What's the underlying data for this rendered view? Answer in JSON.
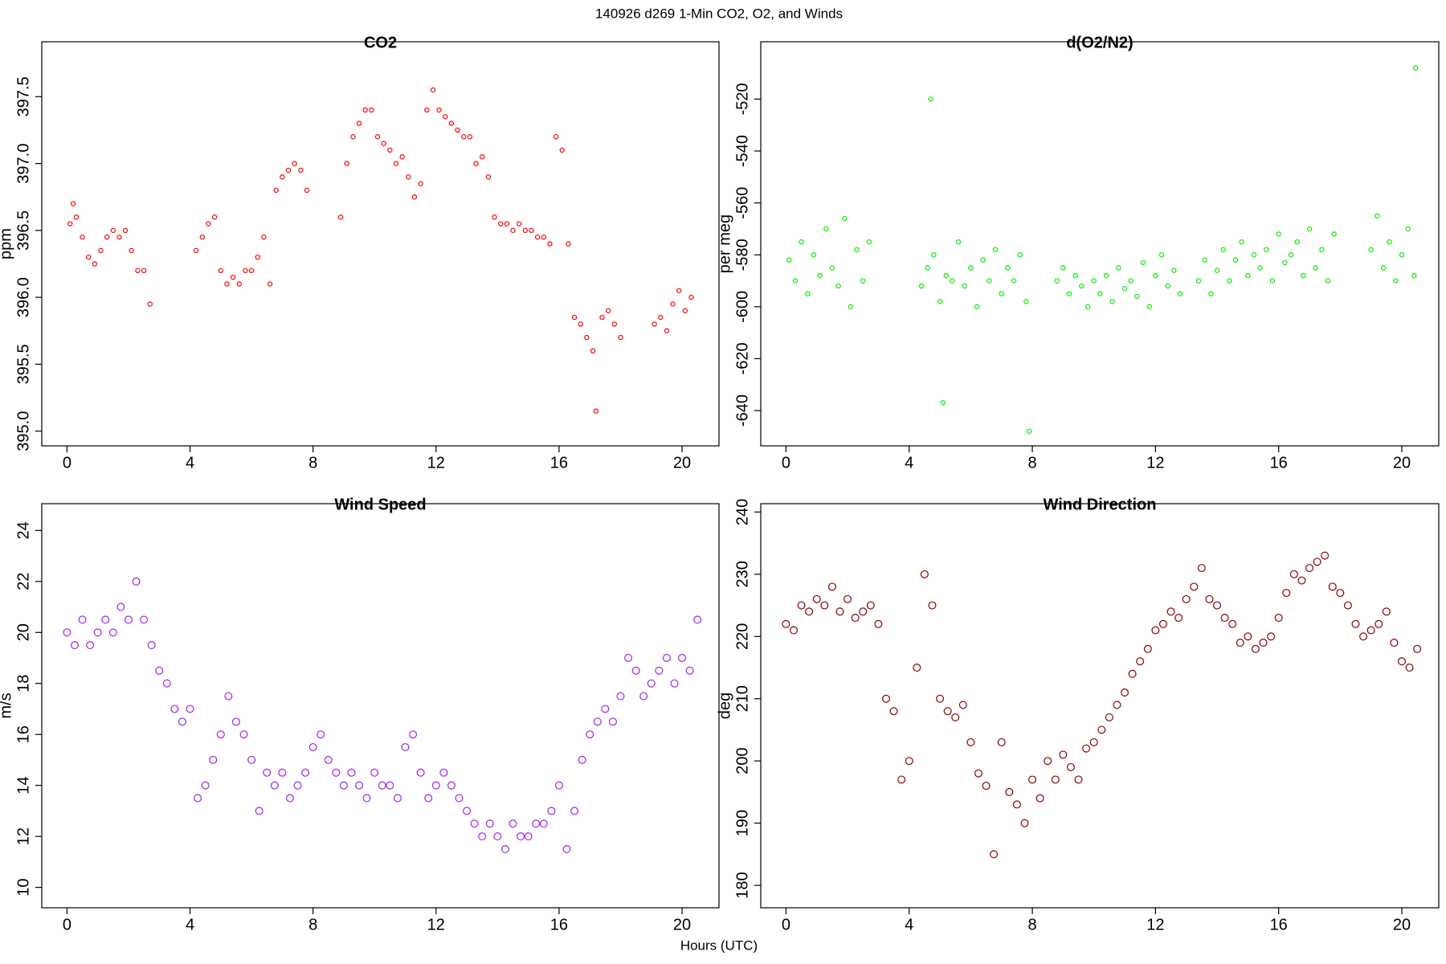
{
  "title": "140926   d269   1-Min CO2, O2, and Winds",
  "xlabel": "Hours (UTC)",
  "chart_data": [
    {
      "type": "scatter",
      "title": "CO2",
      "ylabel": "ppm",
      "color": "#ff0000",
      "xlim": [
        -0.82,
        21.2
      ],
      "xticks": [
        0,
        4,
        8,
        12,
        16,
        20
      ],
      "ylim": [
        394.89,
        397.91
      ],
      "yticks": [
        {
          "value": 395,
          "label": "395.0"
        },
        395.5,
        {
          "value": 396,
          "label": "396.0"
        },
        396.5,
        {
          "value": 397,
          "label": "397.0"
        },
        397.5
      ],
      "x": [
        0.1,
        0.2,
        0.3,
        0.5,
        0.7,
        0.9,
        1.1,
        1.3,
        1.5,
        1.7,
        1.9,
        2.1,
        2.3,
        2.5,
        2.7,
        4.2,
        4.4,
        4.6,
        4.8,
        5.0,
        5.2,
        5.4,
        5.6,
        5.8,
        6.0,
        6.2,
        6.4,
        6.6,
        6.8,
        7.0,
        7.2,
        7.4,
        7.6,
        7.8,
        8.9,
        9.1,
        9.3,
        9.5,
        9.7,
        9.9,
        10.1,
        10.3,
        10.5,
        10.7,
        10.9,
        11.1,
        11.3,
        11.5,
        11.7,
        11.9,
        12.1,
        12.3,
        12.5,
        12.7,
        12.9,
        13.1,
        13.3,
        13.5,
        13.7,
        13.9,
        14.1,
        14.3,
        14.5,
        14.7,
        14.9,
        15.1,
        15.3,
        15.5,
        15.7,
        15.9,
        16.1,
        16.3,
        16.5,
        16.7,
        16.9,
        17.1,
        17.2,
        17.4,
        17.6,
        17.8,
        18.0,
        19.1,
        19.3,
        19.5,
        19.7,
        19.9,
        20.1,
        20.3
      ],
      "values": [
        396.55,
        396.7,
        396.6,
        396.45,
        396.3,
        396.25,
        396.35,
        396.45,
        396.5,
        396.45,
        396.5,
        396.35,
        396.2,
        396.2,
        395.95,
        396.35,
        396.45,
        396.55,
        396.6,
        396.2,
        396.1,
        396.15,
        396.1,
        396.2,
        396.2,
        396.3,
        396.45,
        396.1,
        396.8,
        396.9,
        396.95,
        397.0,
        396.95,
        396.8,
        396.6,
        397.0,
        397.2,
        397.3,
        397.4,
        397.4,
        397.2,
        397.15,
        397.1,
        397.0,
        397.05,
        396.9,
        396.75,
        396.85,
        397.4,
        397.55,
        397.4,
        397.35,
        397.3,
        397.25,
        397.2,
        397.2,
        397.0,
        397.05,
        396.9,
        396.6,
        396.55,
        396.55,
        396.5,
        396.55,
        396.5,
        396.5,
        396.45,
        396.45,
        396.4,
        397.2,
        397.1,
        396.4,
        395.85,
        395.8,
        395.7,
        395.6,
        395.15,
        395.85,
        395.9,
        395.8,
        395.7,
        395.8,
        395.85,
        395.75,
        395.95,
        396.05,
        395.9,
        396.0
      ]
    },
    {
      "type": "scatter",
      "title": "d(O2/N2)",
      "ylabel": "per meg",
      "color": "#00ee00",
      "xlim": [
        -0.82,
        21.2
      ],
      "xticks": [
        0,
        4,
        8,
        12,
        16,
        20
      ],
      "ylim": [
        -653.6,
        -497.9
      ],
      "yticks": [
        -640,
        -620,
        -600,
        -580,
        -560,
        -540,
        -520
      ],
      "x": [
        0.1,
        0.3,
        0.5,
        0.7,
        0.9,
        1.1,
        1.3,
        1.5,
        1.7,
        1.9,
        2.1,
        2.3,
        2.5,
        2.7,
        4.4,
        4.6,
        4.7,
        4.8,
        5.0,
        5.1,
        5.2,
        5.4,
        5.6,
        5.8,
        6.0,
        6.2,
        6.4,
        6.6,
        6.8,
        7.0,
        7.2,
        7.4,
        7.6,
        7.8,
        7.9,
        8.8,
        9.0,
        9.2,
        9.4,
        9.6,
        9.8,
        10.0,
        10.2,
        10.4,
        10.6,
        10.8,
        11.0,
        11.2,
        11.4,
        11.6,
        11.8,
        12.0,
        12.2,
        12.4,
        12.6,
        12.8,
        13.4,
        13.6,
        13.8,
        14.0,
        14.2,
        14.4,
        14.6,
        14.8,
        15.0,
        15.2,
        15.4,
        15.6,
        15.8,
        16.0,
        16.2,
        16.4,
        16.6,
        16.8,
        17.0,
        17.2,
        17.4,
        17.6,
        17.8,
        19.0,
        19.2,
        19.4,
        19.6,
        19.8,
        20.0,
        20.2,
        20.4,
        20.45
      ],
      "values": [
        -582,
        -590,
        -575,
        -595,
        -580,
        -588,
        -570,
        -585,
        -592,
        -566,
        -600,
        -578,
        -590,
        -575,
        -592,
        -585,
        -520,
        -580,
        -598,
        -637,
        -588,
        -590,
        -575,
        -592,
        -585,
        -600,
        -582,
        -590,
        -578,
        -595,
        -585,
        -590,
        -580,
        -598,
        -648,
        -590,
        -585,
        -595,
        -588,
        -592,
        -600,
        -590,
        -595,
        -588,
        -598,
        -585,
        -593,
        -590,
        -596,
        -583,
        -600,
        -588,
        -580,
        -592,
        -586,
        -595,
        -590,
        -582,
        -595,
        -586,
        -578,
        -590,
        -582,
        -575,
        -588,
        -580,
        -585,
        -578,
        -590,
        -572,
        -583,
        -580,
        -575,
        -588,
        -570,
        -585,
        -578,
        -590,
        -572,
        -578,
        -565,
        -585,
        -575,
        -590,
        -580,
        -570,
        -588,
        -508
      ]
    },
    {
      "type": "scatter",
      "title": "Wind Speed",
      "ylabel": "m/s",
      "color": "#a020f0",
      "xlim": [
        -0.82,
        21.2
      ],
      "xticks": [
        0,
        4,
        8,
        12,
        16,
        20
      ],
      "ylim": [
        9.2,
        25.05
      ],
      "yticks": [
        10,
        12,
        14,
        16,
        18,
        20,
        22,
        24
      ],
      "x": [
        0,
        0.25,
        0.5,
        0.75,
        1,
        1.25,
        1.5,
        1.75,
        2,
        2.25,
        2.5,
        2.75,
        3,
        3.25,
        3.5,
        3.75,
        4,
        4.25,
        4.5,
        4.75,
        5,
        5.25,
        5.5,
        5.75,
        6,
        6.25,
        6.5,
        6.75,
        7,
        7.25,
        7.5,
        7.75,
        8,
        8.25,
        8.5,
        8.75,
        9,
        9.25,
        9.5,
        9.75,
        10,
        10.25,
        10.5,
        10.75,
        11,
        11.25,
        11.5,
        11.75,
        12,
        12.25,
        12.5,
        12.75,
        13,
        13.25,
        13.5,
        13.75,
        14,
        14.25,
        14.5,
        14.75,
        15,
        15.25,
        15.5,
        15.75,
        16,
        16.25,
        16.5,
        16.75,
        17,
        17.25,
        17.5,
        17.75,
        18,
        18.25,
        18.5,
        18.75,
        19,
        19.25,
        19.5,
        19.75,
        20,
        20.25,
        20.5
      ],
      "values": [
        20,
        19.5,
        20.5,
        19.5,
        20,
        20.5,
        20,
        21,
        20.5,
        22,
        20.5,
        19.5,
        18.5,
        18,
        17,
        16.5,
        17,
        13.5,
        14,
        15,
        16,
        17.5,
        16.5,
        16,
        15,
        13,
        14.5,
        14,
        14.5,
        13.5,
        14,
        14.5,
        15.5,
        16,
        15,
        14.5,
        14,
        14.5,
        14,
        13.5,
        14.5,
        14,
        14,
        13.5,
        15.5,
        16,
        14.5,
        13.5,
        14,
        14.5,
        14,
        13.5,
        13,
        12.5,
        12,
        12.5,
        12,
        11.5,
        12.5,
        12,
        12,
        12.5,
        12.5,
        13,
        14,
        11.5,
        13,
        15,
        16,
        16.5,
        17,
        16.5,
        17.5,
        19,
        18.5,
        17.5,
        18,
        18.5,
        19,
        18,
        19,
        18.5,
        20.5
      ]
    },
    {
      "type": "scatter",
      "title": "Wind Direction",
      "ylabel": "deg",
      "color": "#8b0000",
      "xlim": [
        -0.82,
        21.2
      ],
      "xticks": [
        0,
        4,
        8,
        12,
        16,
        20
      ],
      "ylim": [
        176.4,
        241.34
      ],
      "yticks": [
        180,
        190,
        200,
        210,
        220,
        230,
        240
      ],
      "x": [
        0,
        0.25,
        0.5,
        0.75,
        1,
        1.25,
        1.5,
        1.75,
        2,
        2.25,
        2.5,
        2.75,
        3,
        3.25,
        3.5,
        3.75,
        4,
        4.25,
        4.5,
        4.75,
        5,
        5.25,
        5.5,
        5.75,
        6,
        6.25,
        6.5,
        6.75,
        7,
        7.25,
        7.5,
        7.75,
        8,
        8.25,
        8.5,
        8.75,
        9,
        9.25,
        9.5,
        9.75,
        10,
        10.25,
        10.5,
        10.75,
        11,
        11.25,
        11.5,
        11.75,
        12,
        12.25,
        12.5,
        12.75,
        13,
        13.25,
        13.5,
        13.75,
        14,
        14.25,
        14.5,
        14.75,
        15,
        15.25,
        15.5,
        15.75,
        16,
        16.25,
        16.5,
        16.75,
        17,
        17.25,
        17.5,
        17.75,
        18,
        18.25,
        18.5,
        18.75,
        19,
        19.25,
        19.5,
        19.75,
        20,
        20.25,
        20.5
      ],
      "values": [
        222,
        221,
        225,
        224,
        226,
        225,
        228,
        224,
        226,
        223,
        224,
        225,
        222,
        210,
        208,
        197,
        200,
        215,
        230,
        225,
        210,
        208,
        207,
        209,
        203,
        198,
        196,
        185,
        203,
        195,
        193,
        190,
        197,
        194,
        200,
        197,
        201,
        199,
        197,
        202,
        203,
        205,
        207,
        209,
        211,
        214,
        216,
        218,
        221,
        222,
        224,
        223,
        226,
        228,
        231,
        226,
        225,
        223,
        222,
        219,
        220,
        218,
        219,
        220,
        223,
        227,
        230,
        229,
        231,
        232,
        233,
        228,
        227,
        225,
        222,
        220,
        221,
        222,
        224,
        219,
        216,
        215,
        218
      ]
    }
  ]
}
